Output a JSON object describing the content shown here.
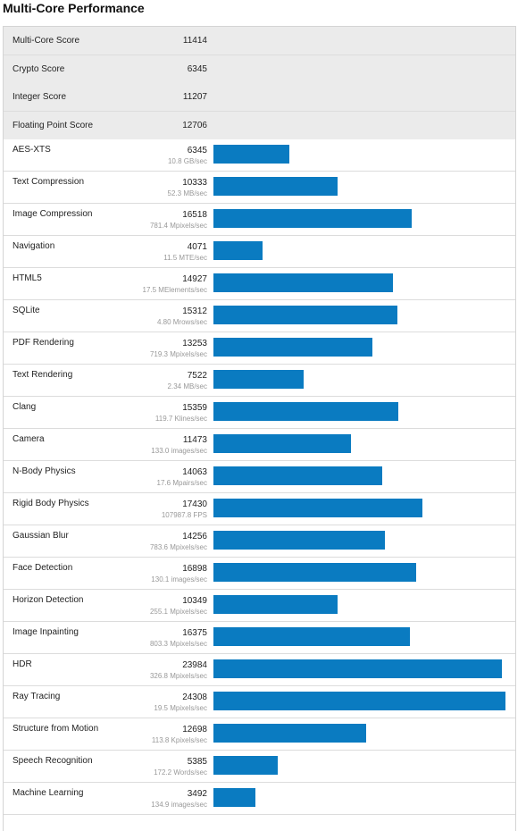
{
  "title": "Multi-Core Performance",
  "summary": [
    {
      "name": "Multi-Core Score",
      "score": 11414
    },
    {
      "name": "Crypto Score",
      "score": 6345
    },
    {
      "name": "Integer Score",
      "score": 11207
    },
    {
      "name": "Floating Point Score",
      "score": 12706
    }
  ],
  "benchmarks": [
    {
      "name": "AES-XTS",
      "score": 6345,
      "detail": "10.8 GB/sec"
    },
    {
      "name": "Text Compression",
      "score": 10333,
      "detail": "52.3 MB/sec"
    },
    {
      "name": "Image Compression",
      "score": 16518,
      "detail": "781.4 Mpixels/sec"
    },
    {
      "name": "Navigation",
      "score": 4071,
      "detail": "11.5 MTE/sec"
    },
    {
      "name": "HTML5",
      "score": 14927,
      "detail": "17.5 MElements/sec"
    },
    {
      "name": "SQLite",
      "score": 15312,
      "detail": "4.80 Mrows/sec"
    },
    {
      "name": "PDF Rendering",
      "score": 13253,
      "detail": "719.3 Mpixels/sec"
    },
    {
      "name": "Text Rendering",
      "score": 7522,
      "detail": "2.34 MB/sec"
    },
    {
      "name": "Clang",
      "score": 15359,
      "detail": "119.7 Klines/sec"
    },
    {
      "name": "Camera",
      "score": 11473,
      "detail": "133.0 images/sec"
    },
    {
      "name": "N-Body Physics",
      "score": 14063,
      "detail": "17.6 Mpairs/sec"
    },
    {
      "name": "Rigid Body Physics",
      "score": 17430,
      "detail": "107987.8 FPS"
    },
    {
      "name": "Gaussian Blur",
      "score": 14256,
      "detail": "783.6 Mpixels/sec"
    },
    {
      "name": "Face Detection",
      "score": 16898,
      "detail": "130.1 images/sec"
    },
    {
      "name": "Horizon Detection",
      "score": 10349,
      "detail": "255.1 Mpixels/sec"
    },
    {
      "name": "Image Inpainting",
      "score": 16375,
      "detail": "803.3 Mpixels/sec"
    },
    {
      "name": "HDR",
      "score": 23984,
      "detail": "326.8 Mpixels/sec"
    },
    {
      "name": "Ray Tracing",
      "score": 24308,
      "detail": "19.5 Mpixels/sec"
    },
    {
      "name": "Structure from Motion",
      "score": 12698,
      "detail": "113.8 Kpixels/sec"
    },
    {
      "name": "Speech Recognition",
      "score": 5385,
      "detail": "172.2 Words/sec"
    },
    {
      "name": "Machine Learning",
      "score": 3492,
      "detail": "134.9 images/sec"
    }
  ]
}
